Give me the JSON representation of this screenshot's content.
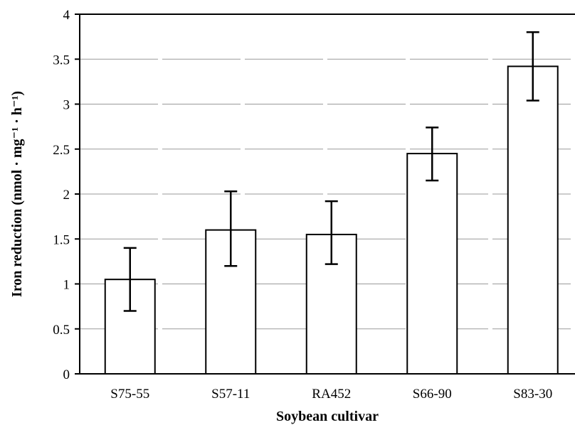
{
  "chart_data": {
    "type": "bar",
    "categories": [
      "S75-55",
      "S57-11",
      "RA452",
      "S66-90",
      "S83-30"
    ],
    "values": [
      1.05,
      1.6,
      1.55,
      2.45,
      3.42
    ],
    "error_low": [
      0.7,
      1.2,
      1.22,
      2.15,
      3.04
    ],
    "error_high": [
      1.4,
      2.03,
      1.92,
      2.74,
      3.8
    ],
    "xlabel": "Soybean cultivar",
    "ylabel": "Iron reduction (nmol · mg⁻¹ · h⁻¹)",
    "ylim": [
      0,
      4
    ],
    "yticks": [
      "0",
      "0.5",
      "1",
      "1.5",
      "2",
      "2.5",
      "3",
      "3.5",
      "4"
    ],
    "grid": true,
    "legend": "none"
  }
}
